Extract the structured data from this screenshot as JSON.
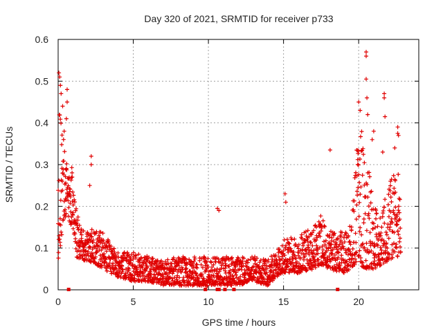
{
  "chart_data": {
    "type": "scatter",
    "title": "Day 320 of 2021, SRMTID for receiver p733",
    "xlabel": "GPS time / hours",
    "ylabel": "SRMTID / TECUs",
    "xlim": [
      0,
      24
    ],
    "ylim": [
      0,
      0.6
    ],
    "x_ticks": [
      0,
      5,
      10,
      15,
      20
    ],
    "y_ticks": [
      0,
      0.1,
      0.2,
      0.3,
      0.4,
      0.5,
      0.6
    ],
    "x_tick_labels": [
      "0",
      "5",
      "10",
      "15",
      "20"
    ],
    "y_tick_labels": [
      "0",
      "0.1",
      "0.2",
      "0.3",
      "0.4",
      "0.5",
      "0.6"
    ],
    "grid": true,
    "marker": "+",
    "series": [
      {
        "name": "SRMTID",
        "color": "#e00000",
        "envelope": [
          [
            0.0,
            0.05,
            0.5
          ],
          [
            0.3,
            0.15,
            0.38
          ],
          [
            0.6,
            0.18,
            0.32
          ],
          [
            0.9,
            0.15,
            0.3
          ],
          [
            1.2,
            0.08,
            0.2
          ],
          [
            1.5,
            0.07,
            0.15
          ],
          [
            2.0,
            0.07,
            0.14
          ],
          [
            2.5,
            0.06,
            0.15
          ],
          [
            3.0,
            0.05,
            0.14
          ],
          [
            3.5,
            0.04,
            0.11
          ],
          [
            4.0,
            0.03,
            0.09
          ],
          [
            5.0,
            0.02,
            0.09
          ],
          [
            6.0,
            0.02,
            0.08
          ],
          [
            7.0,
            0.01,
            0.07
          ],
          [
            8.0,
            0.01,
            0.08
          ],
          [
            9.0,
            0.01,
            0.08
          ],
          [
            10.0,
            0.01,
            0.08
          ],
          [
            11.0,
            0.01,
            0.08
          ],
          [
            12.0,
            0.01,
            0.08
          ],
          [
            13.0,
            0.02,
            0.08
          ],
          [
            14.0,
            0.01,
            0.08
          ],
          [
            14.5,
            0.03,
            0.09
          ],
          [
            15.0,
            0.04,
            0.12
          ],
          [
            16.0,
            0.04,
            0.13
          ],
          [
            17.0,
            0.05,
            0.15
          ],
          [
            17.5,
            0.06,
            0.18
          ],
          [
            18.0,
            0.05,
            0.14
          ],
          [
            19.0,
            0.04,
            0.14
          ],
          [
            19.5,
            0.05,
            0.16
          ],
          [
            20.0,
            0.06,
            0.4
          ],
          [
            20.5,
            0.05,
            0.35
          ],
          [
            21.0,
            0.05,
            0.2
          ],
          [
            21.5,
            0.06,
            0.2
          ],
          [
            22.0,
            0.07,
            0.25
          ],
          [
            22.5,
            0.08,
            0.3
          ],
          [
            22.8,
            0.08,
            0.25
          ]
        ],
        "outliers": [
          {
            "x": 0.05,
            "y": 0.52
          },
          {
            "x": 0.1,
            "y": 0.51
          },
          {
            "x": 0.2,
            "y": 0.47
          },
          {
            "x": 0.15,
            "y": 0.49
          },
          {
            "x": 0.6,
            "y": 0.48
          },
          {
            "x": 0.6,
            "y": 0.45
          },
          {
            "x": 0.55,
            "y": 0.41
          },
          {
            "x": 0.4,
            "y": 0.38
          },
          {
            "x": 0.3,
            "y": 0.44
          },
          {
            "x": 2.2,
            "y": 0.32
          },
          {
            "x": 2.2,
            "y": 0.3
          },
          {
            "x": 2.1,
            "y": 0.25
          },
          {
            "x": 10.6,
            "y": 0.195
          },
          {
            "x": 10.7,
            "y": 0.19
          },
          {
            "x": 15.1,
            "y": 0.23
          },
          {
            "x": 15.15,
            "y": 0.21
          },
          {
            "x": 18.1,
            "y": 0.335
          },
          {
            "x": 20.5,
            "y": 0.57
          },
          {
            "x": 20.5,
            "y": 0.56
          },
          {
            "x": 20.5,
            "y": 0.505
          },
          {
            "x": 20.55,
            "y": 0.46
          },
          {
            "x": 20.0,
            "y": 0.45
          },
          {
            "x": 20.1,
            "y": 0.43
          },
          {
            "x": 20.6,
            "y": 0.42
          },
          {
            "x": 21.7,
            "y": 0.47
          },
          {
            "x": 21.7,
            "y": 0.46
          },
          {
            "x": 21.75,
            "y": 0.415
          },
          {
            "x": 22.6,
            "y": 0.39
          },
          {
            "x": 22.6,
            "y": 0.375
          },
          {
            "x": 22.65,
            "y": 0.37
          },
          {
            "x": 21.0,
            "y": 0.38
          },
          {
            "x": 20.9,
            "y": 0.36
          },
          {
            "x": 21.6,
            "y": 0.33
          },
          {
            "x": 22.4,
            "y": 0.34
          }
        ],
        "zero_points": [
          0.7,
          9.8,
          10.6,
          10.7,
          11.1,
          11.7,
          18.6
        ]
      }
    ]
  }
}
